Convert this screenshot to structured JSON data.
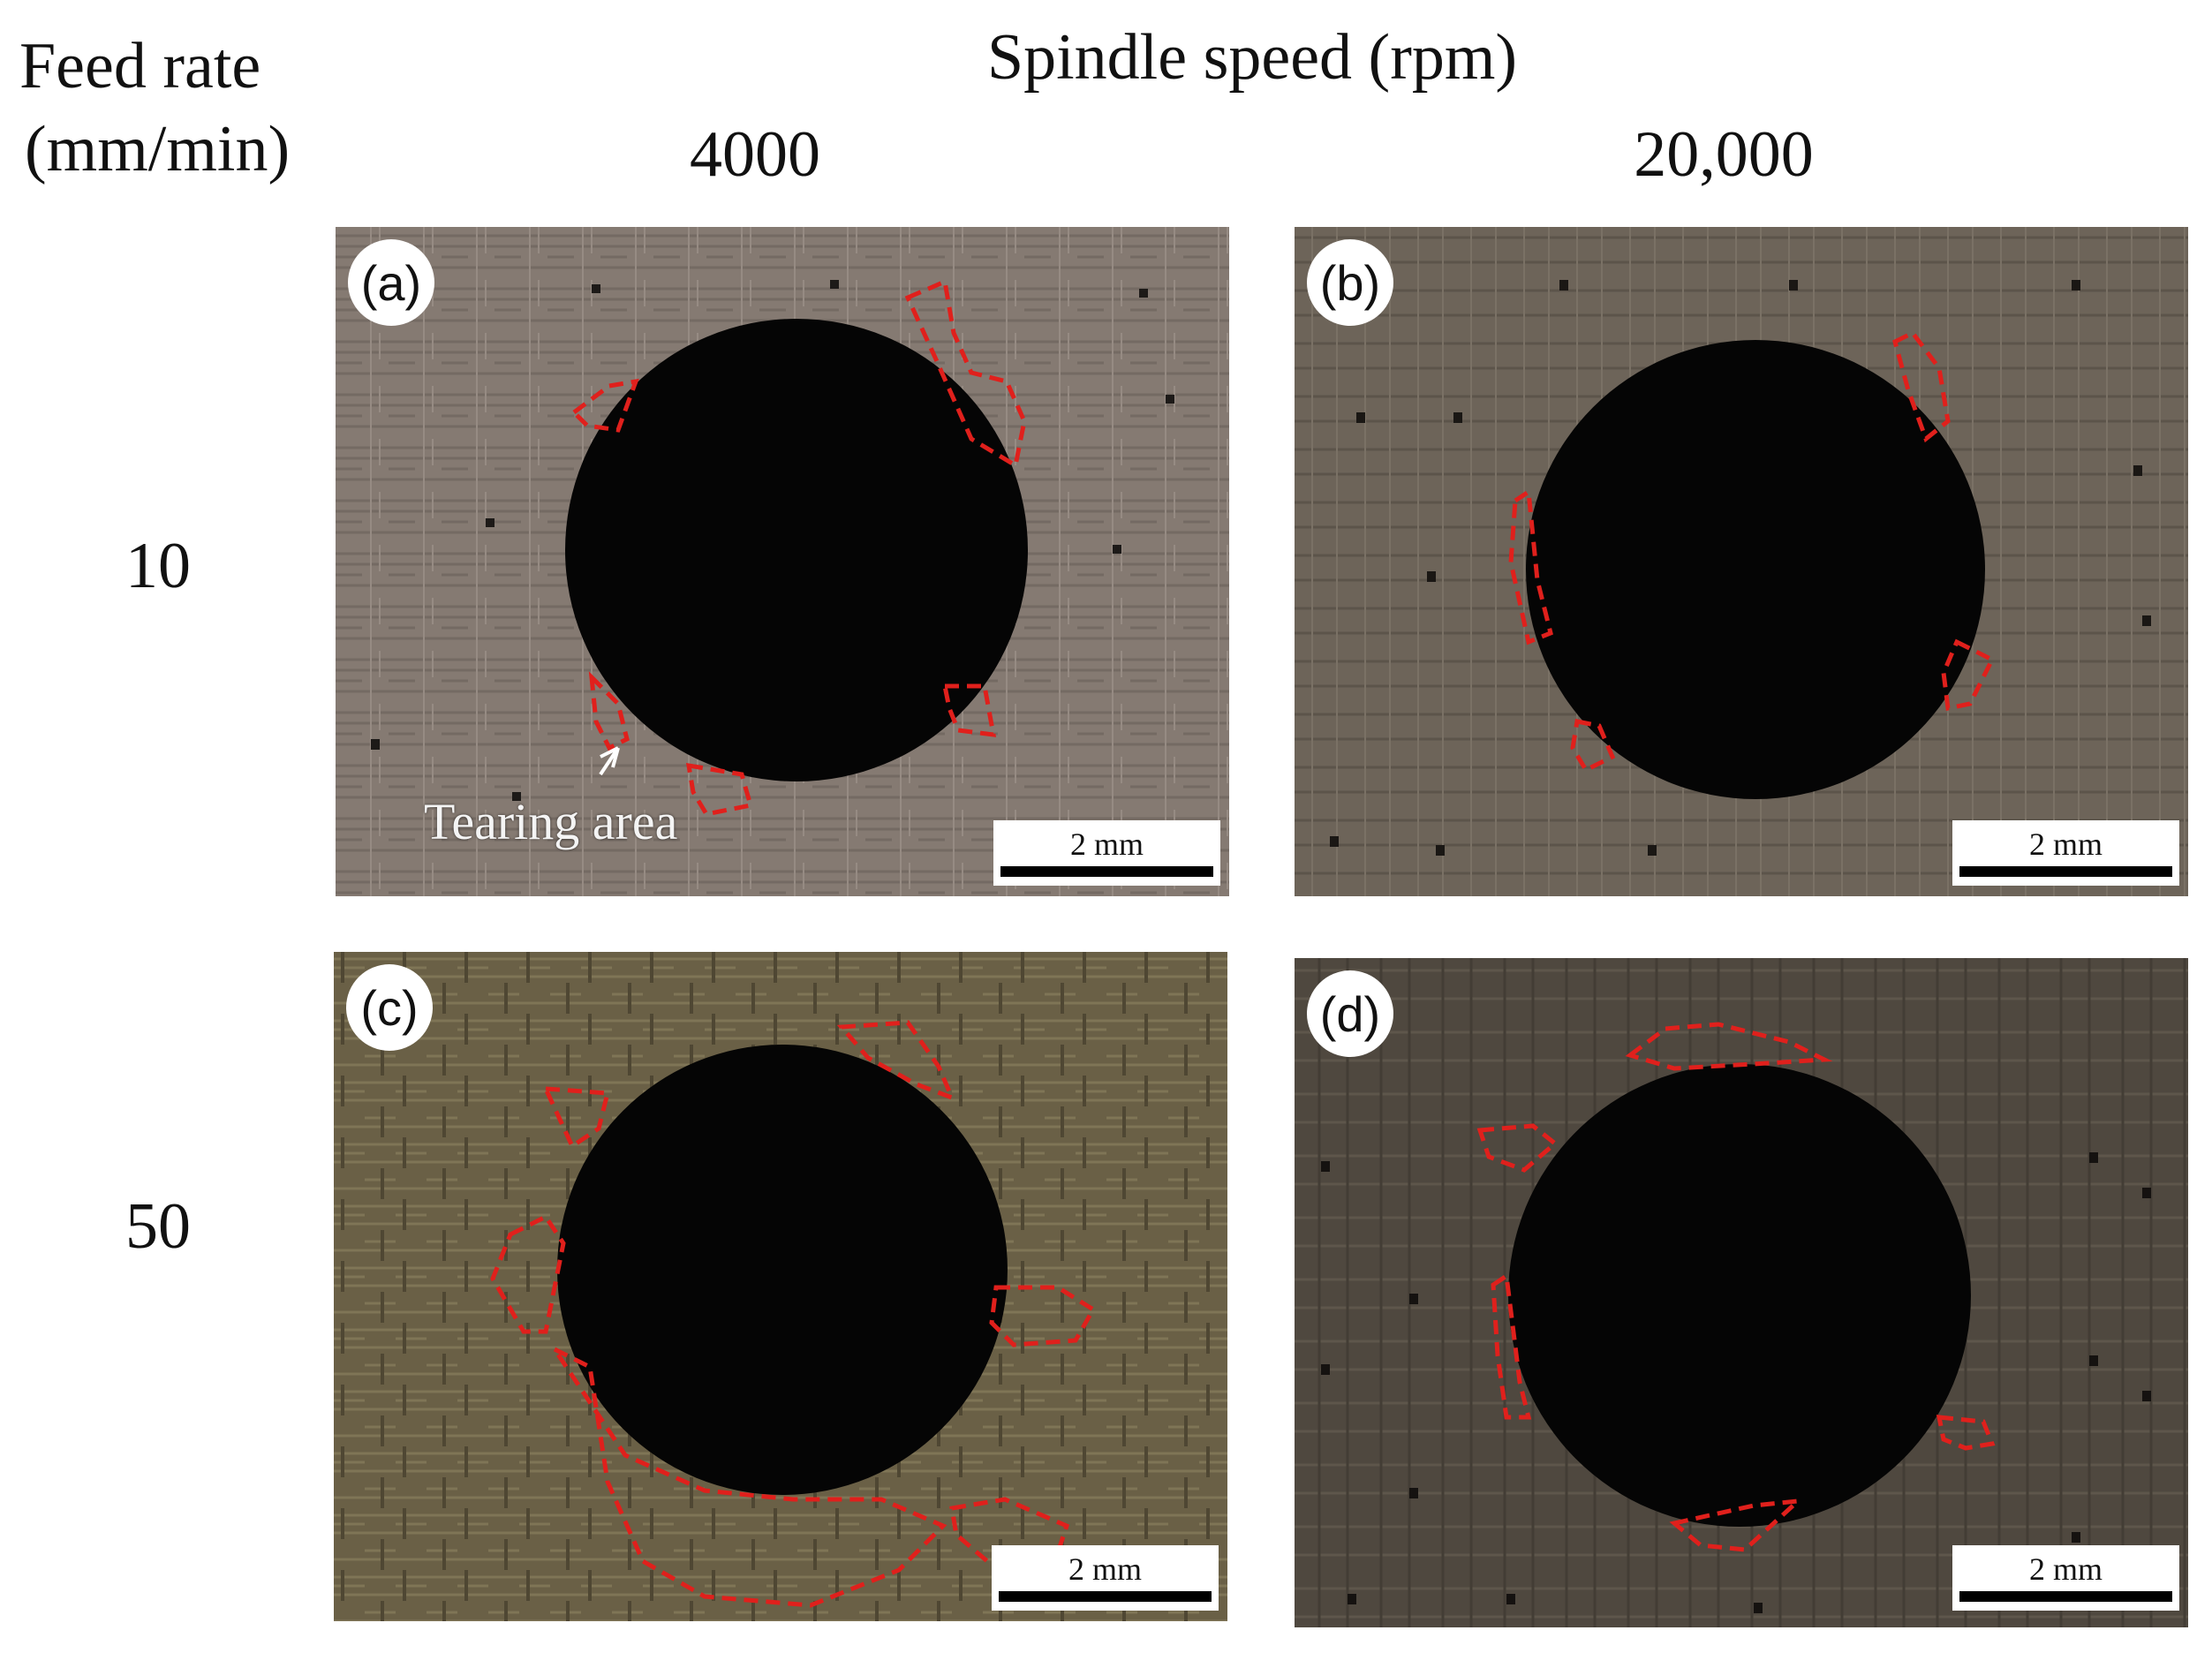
{
  "header": {
    "row_axis_title": "Feed rate",
    "row_axis_unit": "(mm/min)",
    "column_axis_title": "Spindle speed (rpm)",
    "columns": [
      "4000",
      "20,000"
    ]
  },
  "rows": [
    "10",
    "50"
  ],
  "panels": [
    {
      "label": "(a)",
      "scale": "2 mm",
      "annotation": "Tearing area"
    },
    {
      "label": "(b)",
      "scale": "2 mm"
    },
    {
      "label": "(c)",
      "scale": "2 mm"
    },
    {
      "label": "(d)",
      "scale": "2 mm"
    }
  ],
  "colors": {
    "tearing_outline": "#e0201c",
    "hole": "#050505",
    "background": "#ffffff"
  }
}
